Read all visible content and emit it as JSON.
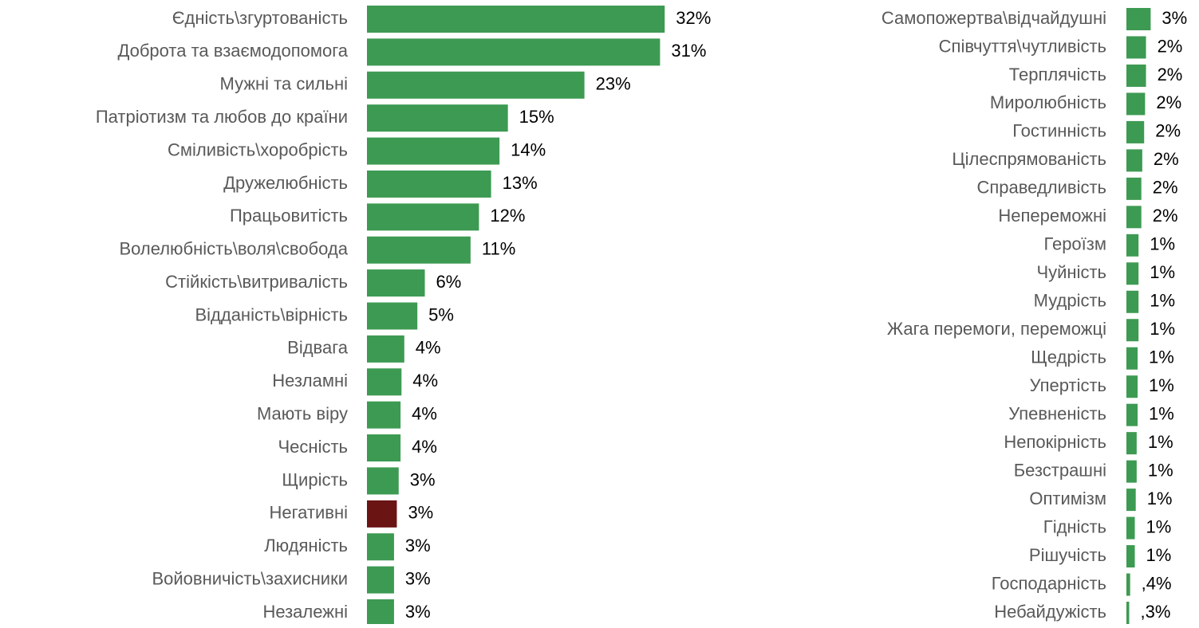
{
  "chart_data": [
    {
      "type": "barh",
      "categories": [
        "Єдність\\згуртованість",
        "Доброта та взаємодопомога",
        "Мужні та сильні",
        "Патріотизм та любов до країни",
        "Сміливість\\хоробрість",
        "Дружелюбність",
        "Працьовитість",
        "Волелюбність\\воля\\свобода",
        "Стійкість\\витривалість ",
        "Відданість\\вірність",
        "Відвага",
        "Незламні",
        "Мають віру",
        "Чесність",
        "Щирість",
        "Негативні ",
        "Людяність",
        "Войовничість\\захисники",
        "Незалежні"
      ],
      "values": [
        31.9,
        31.4,
        23.3,
        15.1,
        14.2,
        13.3,
        12.0,
        11.1,
        6.2,
        5.4,
        4.0,
        3.7,
        3.6,
        3.6,
        3.4,
        3.2,
        2.9,
        2.9,
        2.9
      ],
      "value_labels": [
        "32%",
        "31%",
        "23%",
        "15%",
        "14%",
        "13%",
        "12%",
        "11%",
        "6%",
        "5%",
        "4%",
        "4%",
        "4%",
        "4%",
        "3%",
        "3%",
        "3%",
        "3%",
        "3%"
      ],
      "colors": [
        "#3d9a52",
        "#3d9a52",
        "#3d9a52",
        "#3d9a52",
        "#3d9a52",
        "#3d9a52",
        "#3d9a52",
        "#3d9a52",
        "#3d9a52",
        "#3d9a52",
        "#3d9a52",
        "#3d9a52",
        "#3d9a52",
        "#3d9a52",
        "#3d9a52",
        "#6b1414",
        "#3d9a52",
        "#3d9a52",
        "#3d9a52"
      ],
      "xlim": [
        0,
        35
      ]
    },
    {
      "type": "barh",
      "categories": [
        "Самопожертва\\відчайдушні",
        "Співчуття\\чутливість",
        "Терплячість",
        "Миролюбність",
        "Гостинність",
        "Цілеспрямованість",
        "Справедливість",
        "Непереможні",
        "Героїзм",
        "Чуйність",
        "Мудрість",
        "Жага перемоги, переможці",
        "Щедрість",
        "Упертість",
        "Упевненість",
        "Непокірність",
        "Безстрашні",
        "Оптимізм",
        "Гідність",
        "Рішучість",
        "Господарність",
        "Небайдужість"
      ],
      "values": [
        2.6,
        2.1,
        2.1,
        2.0,
        1.9,
        1.7,
        1.6,
        1.6,
        1.3,
        1.3,
        1.3,
        1.3,
        1.2,
        1.2,
        1.2,
        1.1,
        1.1,
        1.0,
        0.9,
        0.9,
        0.4,
        0.3
      ],
      "value_labels": [
        "3%",
        "2%",
        "2%",
        "2%",
        "2%",
        "2%",
        "2%",
        "2%",
        "1%",
        "1%",
        "1%",
        "1%",
        "1%",
        "1%",
        "1%",
        "1%",
        "1%",
        "1%",
        "1%",
        "1%",
        ",4%",
        ",3%"
      ],
      "colors": [
        "#3d9a52",
        "#3d9a52",
        "#3d9a52",
        "#3d9a52",
        "#3d9a52",
        "#3d9a52",
        "#3d9a52",
        "#3d9a52",
        "#3d9a52",
        "#3d9a52",
        "#3d9a52",
        "#3d9a52",
        "#3d9a52",
        "#3d9a52",
        "#3d9a52",
        "#3d9a52",
        "#3d9a52",
        "#3d9a52",
        "#3d9a52",
        "#3d9a52",
        "#3d9a52",
        "#3d9a52"
      ],
      "xlim": [
        0,
        35
      ]
    }
  ]
}
